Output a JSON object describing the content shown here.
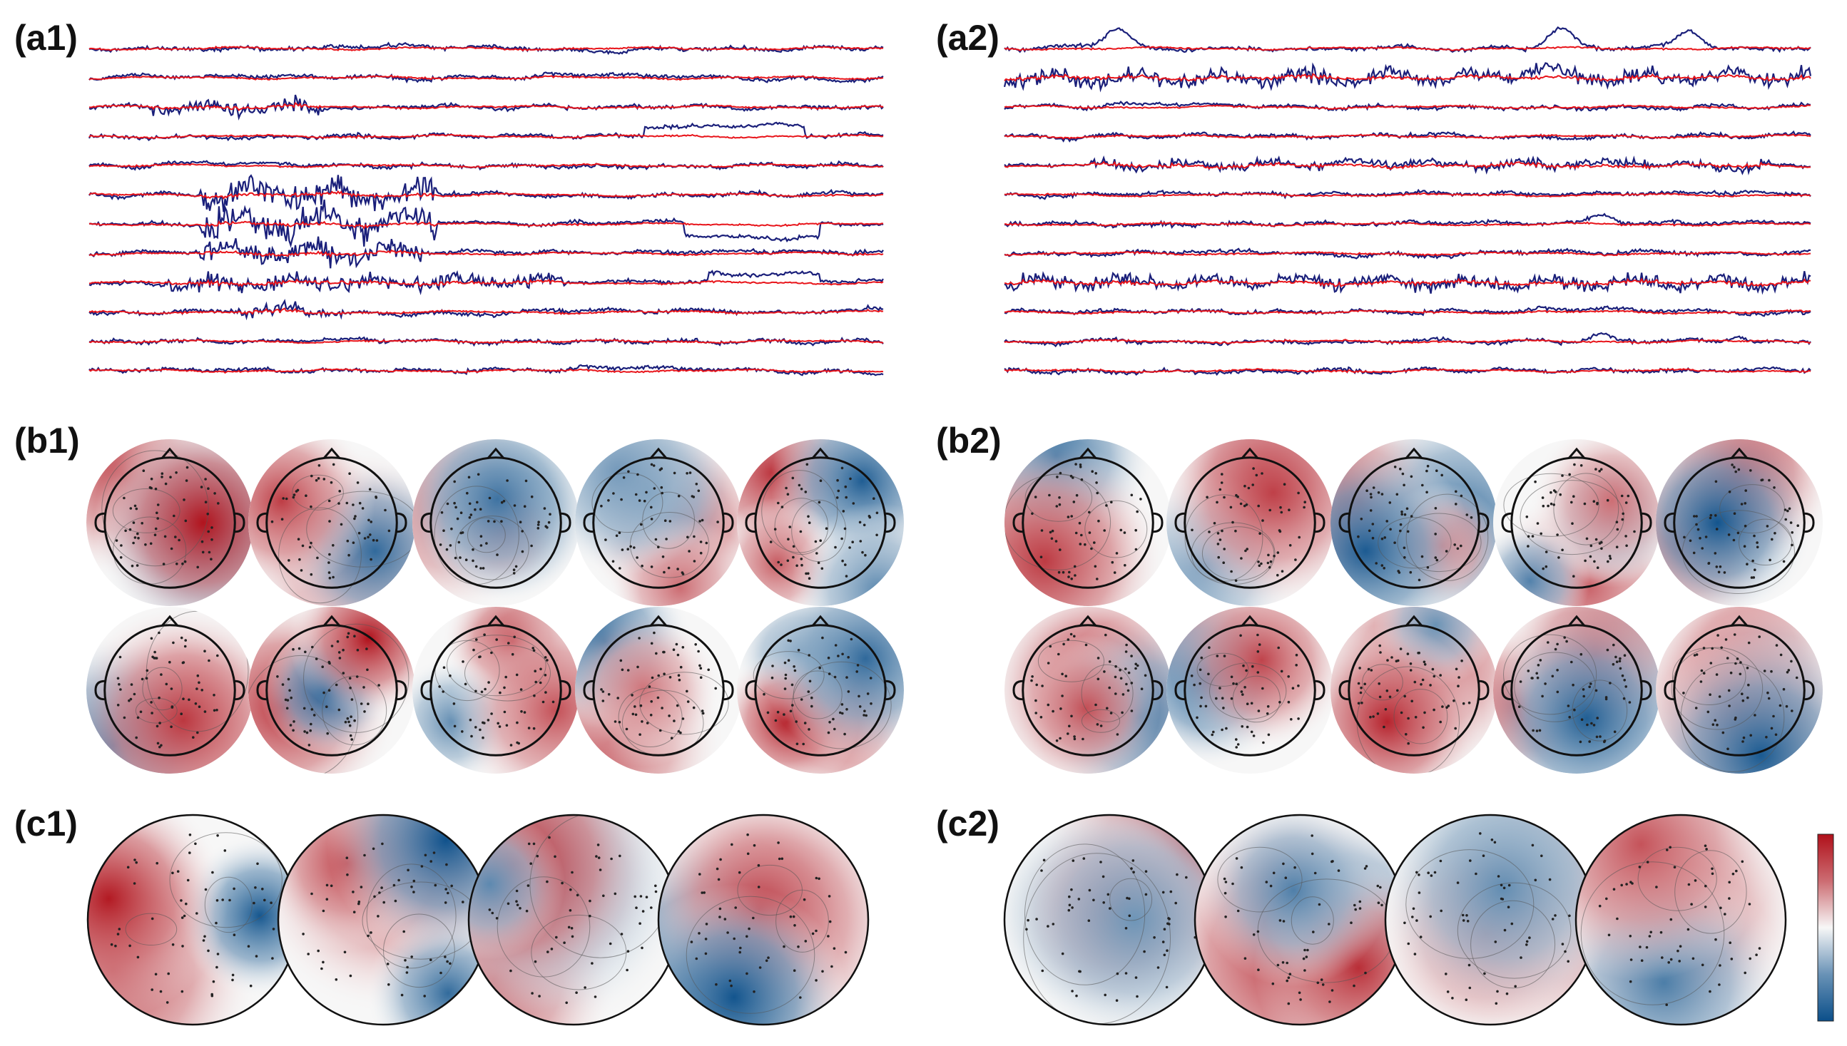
{
  "labels": {
    "a1": "(a1)",
    "a2": "(a2)",
    "b1": "(b1)",
    "b2": "(b2)",
    "c1": "(c1)",
    "c2": "(c2)"
  },
  "colors": {
    "trace_raw": "#1a1f7a",
    "trace_clean": "#e8141a",
    "map_negative": "#0b4f8a",
    "map_mid": "#f7f7f7",
    "map_positive": "#b0101a",
    "outline": "#111111"
  },
  "chart_data": [
    {
      "type": "line",
      "panel": "a1",
      "channel_count": 12,
      "series": [
        {
          "legend": "",
          "color": "#1a1f7a"
        },
        {
          "legend": "",
          "color": "#e8141a"
        }
      ]
    },
    {
      "type": "line",
      "panel": "a2",
      "channel_count": 12,
      "series": [
        {
          "legend": "",
          "color": "#1a1f7a"
        },
        {
          "legend": "",
          "color": "#e8141a"
        }
      ]
    },
    {
      "type": "heatmap",
      "panel": "b1",
      "map_count": 10,
      "head_outline": true
    },
    {
      "type": "heatmap",
      "panel": "b2",
      "map_count": 10,
      "head_outline": true
    },
    {
      "type": "heatmap",
      "panel": "c1",
      "map_count": 4,
      "head_outline": false
    },
    {
      "type": "heatmap",
      "panel": "c2",
      "map_count": 4,
      "head_outline": false,
      "colorbar": {
        "colormap": "RdBu_r",
        "tick_labels": []
      }
    }
  ]
}
